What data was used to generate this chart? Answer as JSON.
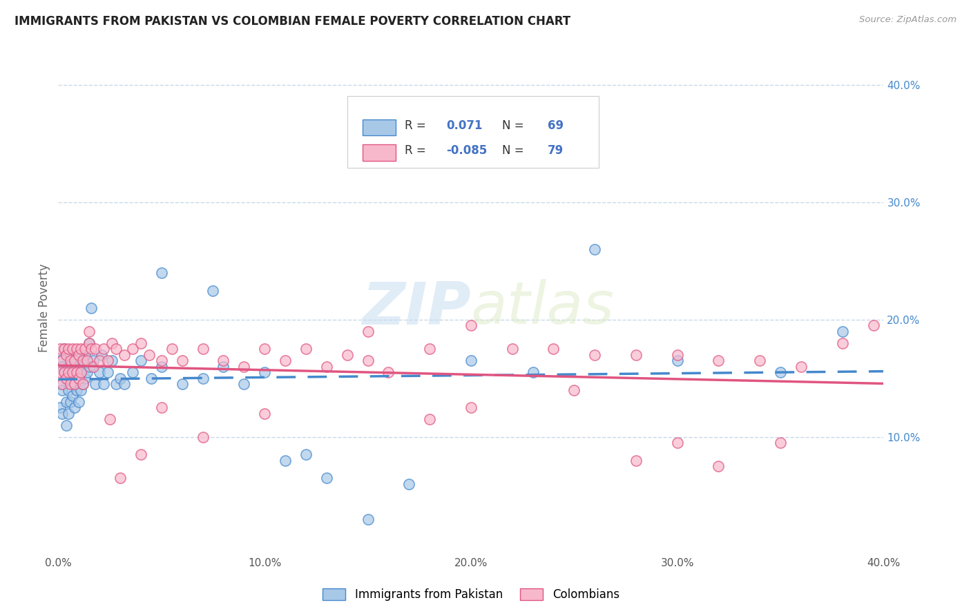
{
  "title": "IMMIGRANTS FROM PAKISTAN VS COLOMBIAN FEMALE POVERTY CORRELATION CHART",
  "source": "Source: ZipAtlas.com",
  "ylabel": "Female Poverty",
  "watermark_zip": "ZIP",
  "watermark_atlas": "atlas",
  "blue_label": "Immigrants from Pakistan",
  "pink_label": "Colombians",
  "blue_R": "0.071",
  "blue_N": "69",
  "pink_R": "-0.085",
  "pink_N": "79",
  "blue_scatter_color": "#a8c8e8",
  "pink_scatter_color": "#f8b8cc",
  "blue_line_color": "#4488cc",
  "pink_line_color": "#e05580",
  "legend_value_color": "#4472c4",
  "background_color": "#ffffff",
  "grid_color": "#c8d8e8",
  "ytick_color": "#4488cc",
  "xmin": 0.0,
  "xmax": 0.4,
  "ymin": 0.0,
  "ymax": 0.42,
  "blue_scatter_x": [
    0.001,
    0.001,
    0.001,
    0.002,
    0.002,
    0.002,
    0.003,
    0.003,
    0.004,
    0.004,
    0.004,
    0.005,
    0.005,
    0.005,
    0.006,
    0.006,
    0.006,
    0.007,
    0.007,
    0.008,
    0.008,
    0.008,
    0.009,
    0.009,
    0.01,
    0.01,
    0.01,
    0.011,
    0.011,
    0.012,
    0.012,
    0.013,
    0.013,
    0.014,
    0.015,
    0.015,
    0.016,
    0.017,
    0.018,
    0.02,
    0.021,
    0.022,
    0.024,
    0.026,
    0.028,
    0.03,
    0.032,
    0.036,
    0.04,
    0.045,
    0.05,
    0.06,
    0.07,
    0.08,
    0.09,
    0.1,
    0.11,
    0.13,
    0.15,
    0.17,
    0.2,
    0.23,
    0.26,
    0.3,
    0.35,
    0.38,
    0.05,
    0.075,
    0.12
  ],
  "blue_scatter_y": [
    0.165,
    0.145,
    0.125,
    0.16,
    0.14,
    0.12,
    0.155,
    0.175,
    0.15,
    0.13,
    0.11,
    0.16,
    0.14,
    0.12,
    0.17,
    0.15,
    0.13,
    0.155,
    0.135,
    0.165,
    0.145,
    0.125,
    0.16,
    0.14,
    0.17,
    0.15,
    0.13,
    0.16,
    0.14,
    0.165,
    0.145,
    0.17,
    0.15,
    0.155,
    0.18,
    0.16,
    0.21,
    0.165,
    0.145,
    0.155,
    0.17,
    0.145,
    0.155,
    0.165,
    0.145,
    0.15,
    0.145,
    0.155,
    0.165,
    0.15,
    0.16,
    0.145,
    0.15,
    0.16,
    0.145,
    0.155,
    0.08,
    0.065,
    0.03,
    0.06,
    0.165,
    0.155,
    0.26,
    0.165,
    0.155,
    0.19,
    0.24,
    0.225,
    0.085
  ],
  "pink_scatter_x": [
    0.001,
    0.001,
    0.002,
    0.002,
    0.003,
    0.003,
    0.004,
    0.004,
    0.005,
    0.005,
    0.006,
    0.006,
    0.007,
    0.007,
    0.008,
    0.008,
    0.009,
    0.009,
    0.01,
    0.01,
    0.011,
    0.011,
    0.012,
    0.012,
    0.013,
    0.014,
    0.015,
    0.016,
    0.017,
    0.018,
    0.02,
    0.022,
    0.024,
    0.026,
    0.028,
    0.032,
    0.036,
    0.04,
    0.044,
    0.05,
    0.055,
    0.06,
    0.07,
    0.08,
    0.09,
    0.1,
    0.11,
    0.12,
    0.13,
    0.14,
    0.15,
    0.16,
    0.18,
    0.2,
    0.22,
    0.24,
    0.26,
    0.28,
    0.3,
    0.32,
    0.34,
    0.36,
    0.38,
    0.395,
    0.1,
    0.2,
    0.15,
    0.3,
    0.25,
    0.35,
    0.18,
    0.28,
    0.32,
    0.05,
    0.07,
    0.04,
    0.03,
    0.025,
    0.015
  ],
  "pink_scatter_y": [
    0.175,
    0.155,
    0.165,
    0.145,
    0.175,
    0.155,
    0.17,
    0.15,
    0.175,
    0.155,
    0.165,
    0.145,
    0.175,
    0.155,
    0.165,
    0.145,
    0.175,
    0.155,
    0.17,
    0.15,
    0.175,
    0.155,
    0.165,
    0.145,
    0.175,
    0.165,
    0.18,
    0.175,
    0.16,
    0.175,
    0.165,
    0.175,
    0.165,
    0.18,
    0.175,
    0.17,
    0.175,
    0.18,
    0.17,
    0.165,
    0.175,
    0.165,
    0.175,
    0.165,
    0.16,
    0.175,
    0.165,
    0.175,
    0.16,
    0.17,
    0.165,
    0.155,
    0.175,
    0.125,
    0.175,
    0.175,
    0.17,
    0.17,
    0.17,
    0.165,
    0.165,
    0.16,
    0.18,
    0.195,
    0.12,
    0.195,
    0.19,
    0.095,
    0.14,
    0.095,
    0.115,
    0.08,
    0.075,
    0.125,
    0.1,
    0.085,
    0.065,
    0.115,
    0.19
  ]
}
